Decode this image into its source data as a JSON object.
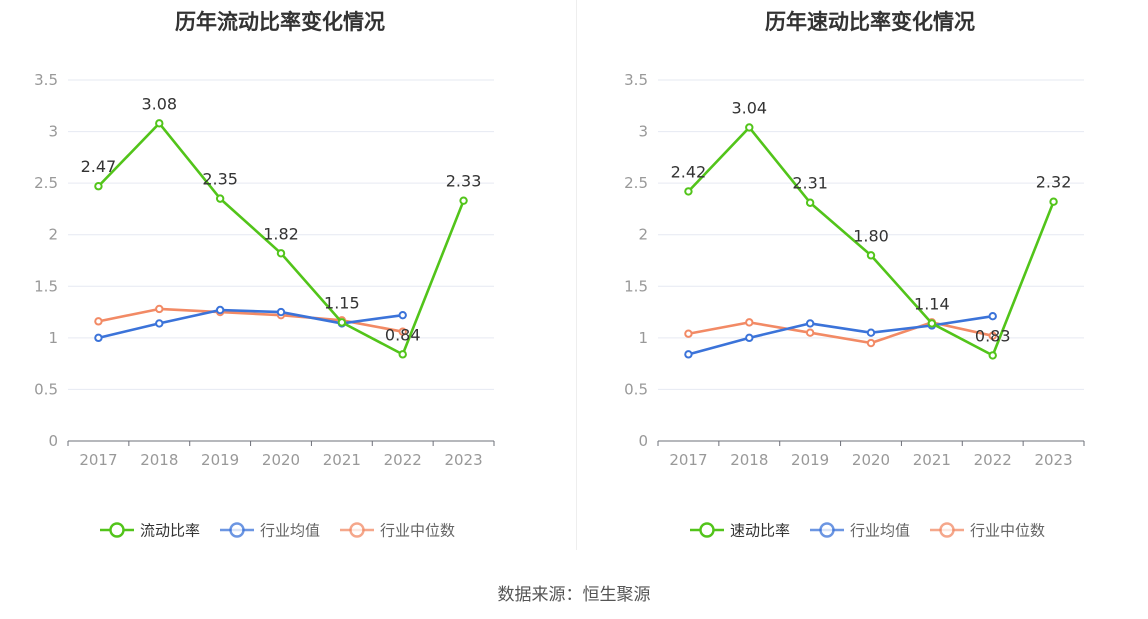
{
  "source": "数据来源：恒生聚源",
  "chart_data": [
    {
      "type": "line",
      "title": "历年流动比率变化情况",
      "x": [
        "2017",
        "2018",
        "2019",
        "2020",
        "2021",
        "2022",
        "2023"
      ],
      "ylim": [
        0,
        3.5
      ],
      "yticks": [
        "0",
        "0.5",
        "1",
        "1.5",
        "2",
        "2.5",
        "3",
        "3.5"
      ],
      "grid": true,
      "legend_position": "bottom",
      "series": [
        {
          "name": "流动比率",
          "color": "#52c41a",
          "values": [
            2.47,
            3.08,
            2.35,
            1.82,
            1.15,
            0.84,
            2.33
          ],
          "labels": [
            "2.47",
            "3.08",
            "2.35",
            "1.82",
            "1.15",
            "0.84",
            "2.33"
          ]
        },
        {
          "name": "行业均值",
          "color": "#3b73d9",
          "values": [
            1.0,
            1.14,
            1.27,
            1.25,
            1.14,
            1.22,
            null
          ]
        },
        {
          "name": "行业中位数",
          "color": "#f28a65",
          "values": [
            1.16,
            1.28,
            1.25,
            1.22,
            1.17,
            1.06,
            null
          ]
        }
      ]
    },
    {
      "type": "line",
      "title": "历年速动比率变化情况",
      "x": [
        "2017",
        "2018",
        "2019",
        "2020",
        "2021",
        "2022",
        "2023"
      ],
      "ylim": [
        0,
        3.5
      ],
      "yticks": [
        "0",
        "0.5",
        "1",
        "1.5",
        "2",
        "2.5",
        "3",
        "3.5"
      ],
      "grid": true,
      "legend_position": "bottom",
      "series": [
        {
          "name": "速动比率",
          "color": "#52c41a",
          "values": [
            2.42,
            3.04,
            2.31,
            1.8,
            1.14,
            0.83,
            2.32
          ],
          "labels": [
            "2.42",
            "3.04",
            "2.31",
            "1.80",
            "1.14",
            "0.83",
            "2.32"
          ]
        },
        {
          "name": "行业均值",
          "color": "#3b73d9",
          "values": [
            0.84,
            1.0,
            1.14,
            1.05,
            1.12,
            1.21,
            null
          ]
        },
        {
          "name": "行业中位数",
          "color": "#f28a65",
          "values": [
            1.04,
            1.15,
            1.05,
            0.95,
            1.15,
            1.02,
            null
          ]
        }
      ]
    }
  ]
}
